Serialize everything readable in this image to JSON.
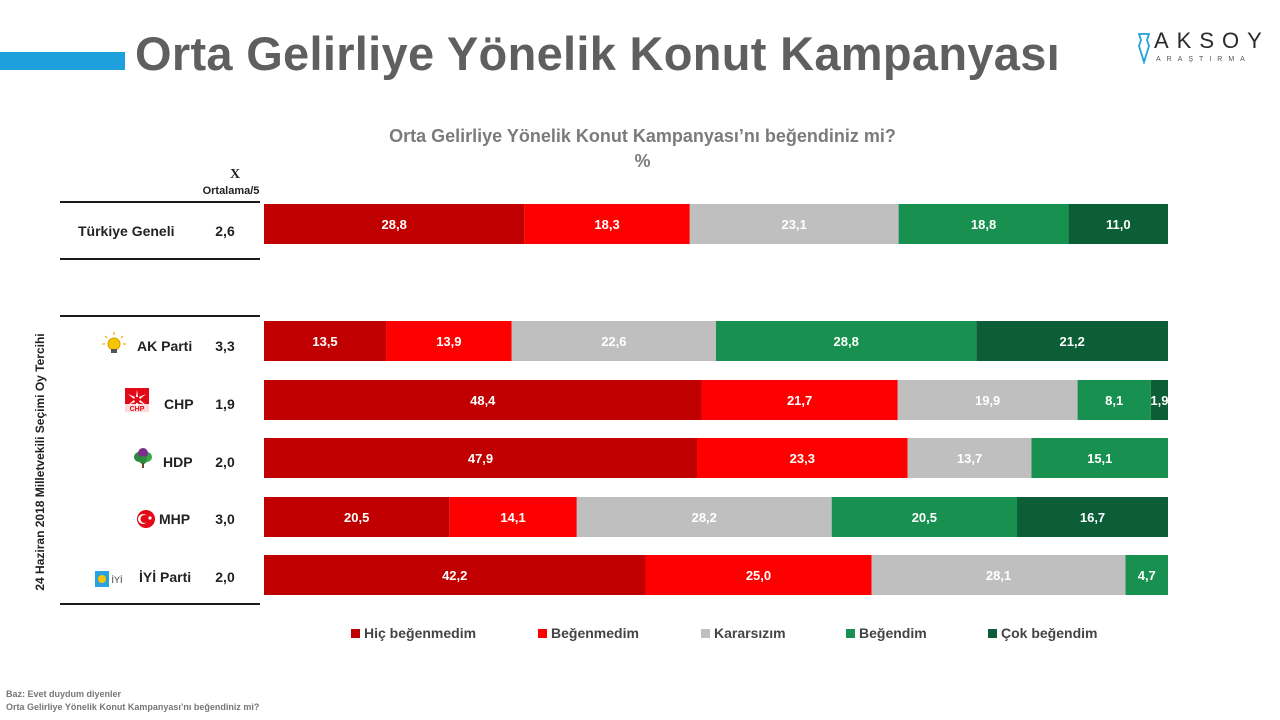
{
  "page": {
    "title": "Orta Gelirliye Yönelik Konut Kampanyası",
    "logo_name": "AKSOY",
    "logo_sub": "ARAŞTIRMA"
  },
  "chart_data": {
    "type": "bar",
    "orientation": "horizontal-stacked",
    "title": "Orta Gelirliye Yönelik Konut Kampanyası’nı beğendiniz mi?",
    "subtitle": "%",
    "mean_header_symbol": "X",
    "mean_header_label": "Ortalama/5",
    "group_label": "24 Haziran 2018 Milletvekili Seçimi Oy Tercihi",
    "categories": [
      "Türkiye Geneli",
      "AK Parti",
      "CHP",
      "HDP",
      "MHP",
      "İYİ Parti"
    ],
    "means": [
      "2,6",
      "3,3",
      "1,9",
      "2,0",
      "3,0",
      "2,0"
    ],
    "series": [
      {
        "name": "Hiç beğenmedim",
        "color": "#c00000",
        "values": [
          28.8,
          13.5,
          48.4,
          47.9,
          20.5,
          42.2
        ]
      },
      {
        "name": "Beğenmedim",
        "color": "#ff0000",
        "values": [
          18.3,
          13.9,
          21.7,
          23.3,
          14.1,
          25.0
        ]
      },
      {
        "name": "Kararsızım",
        "color": "#bfbfbf",
        "values": [
          23.1,
          22.6,
          19.9,
          13.7,
          28.2,
          28.1
        ]
      },
      {
        "name": "Beğendim",
        "color": "#189150",
        "values": [
          18.8,
          28.8,
          8.1,
          15.1,
          20.5,
          4.7
        ]
      },
      {
        "name": "Çok beğendim",
        "color": "#0b5e36",
        "values": [
          11.0,
          21.2,
          1.9,
          0,
          16.7,
          0
        ]
      }
    ],
    "xlim": [
      0,
      100
    ],
    "legend_position": "bottom",
    "grid": false
  },
  "footnote": {
    "line1": "Baz: Evet duydum diyenler",
    "line2": "Orta Gelirliye Yönelik Konut Kampanyası’nı beğendiniz mi?"
  },
  "icons": {
    "akp": "lightbulb-icon",
    "chp": "six-arrows-icon",
    "hdp": "tree-icon",
    "mhp": "crescent-icon",
    "iyi": "sun-icon"
  }
}
